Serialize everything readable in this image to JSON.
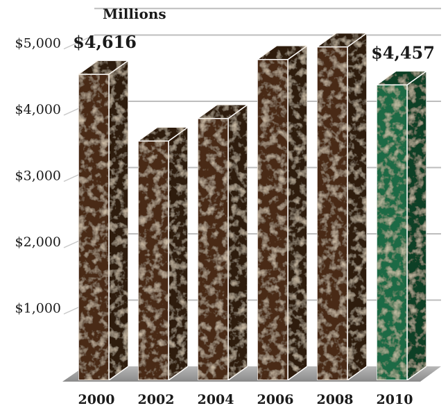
{
  "chart_data": {
    "type": "bar",
    "style": "3d",
    "title": "",
    "unit_label": "Millions",
    "categories": [
      "2000",
      "2002",
      "2004",
      "2006",
      "2008",
      "2010"
    ],
    "values": [
      4616,
      3610,
      3950,
      4840,
      5030,
      4457
    ],
    "y_ticks": [
      "$1,000",
      "$2,000",
      "$3,000",
      "$4,000",
      "$5,000"
    ],
    "y_tick_values": [
      1000,
      2000,
      3000,
      4000,
      5000
    ],
    "ylim": [
      0,
      5400
    ],
    "grid": true,
    "data_labels": [
      {
        "index": 0,
        "text": "$4,616"
      },
      {
        "index": 5,
        "text": "$4,457"
      }
    ],
    "colors": {
      "bar": "#4a2c18",
      "bar_dark": "#2f1a0c",
      "highlight": "#1f6a45",
      "highlight_dark": "#113f28",
      "highlight_index": 5
    }
  }
}
